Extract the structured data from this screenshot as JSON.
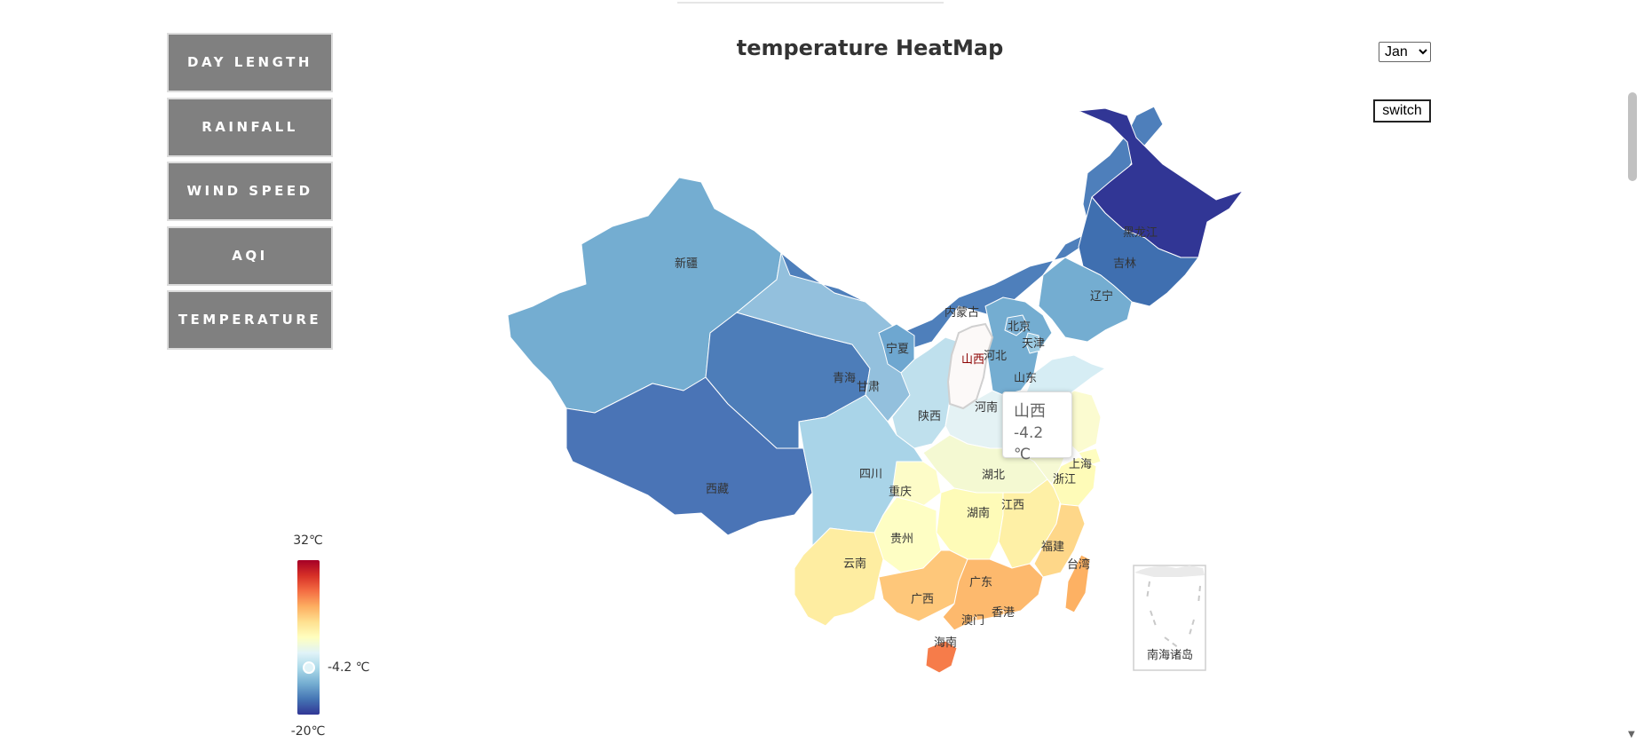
{
  "menu": {
    "items": [
      {
        "label": "DAY LENGTH"
      },
      {
        "label": "RAINFALL"
      },
      {
        "label": "WIND SPEED"
      },
      {
        "label": "AQI"
      },
      {
        "label": "TEMPERATURE"
      }
    ]
  },
  "title": "temperature HeatMap",
  "month_select": {
    "selected": "Jan"
  },
  "switch_label": "switch",
  "legend": {
    "max_label": "32℃",
    "min_label": "-20℃",
    "pointer_label": "-4.2 ℃",
    "min_value": -20,
    "max_value": 32,
    "pointer_value": -4.2,
    "colors": [
      "#313695",
      "#4575b4",
      "#74add1",
      "#abd9e9",
      "#e0f3f8",
      "#ffffbf",
      "#fee090",
      "#fdae61",
      "#f46d43",
      "#d73027",
      "#a50026"
    ]
  },
  "tooltip": {
    "province": "山西",
    "value": "-4.2 ℃"
  },
  "provinces": [
    {
      "name": "新疆"
    },
    {
      "name": "西藏"
    },
    {
      "name": "青海"
    },
    {
      "name": "甘肃"
    },
    {
      "name": "内蒙古"
    },
    {
      "name": "黑龙江"
    },
    {
      "name": "吉林"
    },
    {
      "name": "辽宁"
    },
    {
      "name": "宁夏"
    },
    {
      "name": "陕西"
    },
    {
      "name": "山西"
    },
    {
      "name": "河北"
    },
    {
      "name": "北京"
    },
    {
      "name": "天津"
    },
    {
      "name": "山东"
    },
    {
      "name": "河南"
    },
    {
      "name": "四川"
    },
    {
      "name": "重庆"
    },
    {
      "name": "湖北"
    },
    {
      "name": "湖南"
    },
    {
      "name": "贵州"
    },
    {
      "name": "云南"
    },
    {
      "name": "广西"
    },
    {
      "name": "广东"
    },
    {
      "name": "江西"
    },
    {
      "name": "福建"
    },
    {
      "name": "浙江"
    },
    {
      "name": "上海"
    },
    {
      "name": "台湾"
    },
    {
      "name": "香港"
    },
    {
      "name": "澳门"
    },
    {
      "name": "海南"
    },
    {
      "name": "南海诸岛"
    }
  ]
}
